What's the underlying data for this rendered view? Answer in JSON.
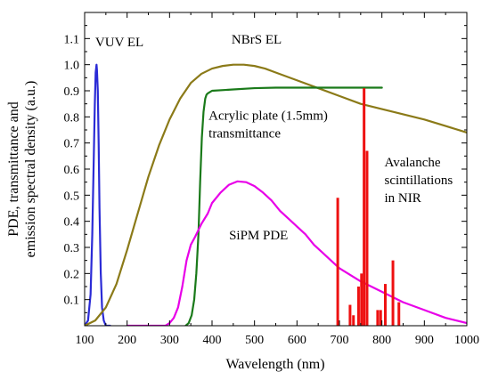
{
  "chart_data": {
    "type": "line",
    "xlabel": "Wavelength (nm)",
    "ylabel_lines": [
      "PDE, transmittance and",
      "emission spectral density (a.u.)"
    ],
    "xlim": [
      100,
      1000
    ],
    "ylim": [
      0,
      1.2
    ],
    "xticks": [
      100,
      200,
      300,
      400,
      500,
      600,
      700,
      800,
      900,
      1000
    ],
    "yticks": [
      0.1,
      0.2,
      0.3,
      0.4,
      0.5,
      0.6,
      0.7,
      0.8,
      0.9,
      1.0,
      1.1
    ],
    "grid": false,
    "series": [
      {
        "key": "vuv",
        "color": "#2b2bd6",
        "x": [
          100,
          108,
          114,
          118,
          121,
          124,
          126,
          128,
          129,
          131,
          133,
          135,
          138,
          141,
          145,
          150,
          160
        ],
        "y": [
          0,
          0.02,
          0.12,
          0.35,
          0.6,
          0.85,
          0.97,
          1.0,
          0.98,
          0.9,
          0.7,
          0.45,
          0.2,
          0.07,
          0.02,
          0,
          0
        ]
      },
      {
        "key": "nbrs",
        "color": "#8b7a18",
        "x": [
          100,
          125,
          150,
          175,
          200,
          225,
          250,
          275,
          300,
          325,
          350,
          375,
          400,
          425,
          450,
          475,
          500,
          525,
          550,
          600,
          650,
          700,
          750,
          800,
          850,
          900,
          950,
          1000
        ],
        "y": [
          0,
          0.02,
          0.07,
          0.16,
          0.29,
          0.43,
          0.57,
          0.69,
          0.79,
          0.87,
          0.93,
          0.965,
          0.985,
          0.995,
          1.0,
          1.0,
          0.995,
          0.985,
          0.97,
          0.94,
          0.91,
          0.88,
          0.85,
          0.83,
          0.81,
          0.79,
          0.765,
          0.74
        ]
      },
      {
        "key": "acrylic",
        "color": "#1a7a1a",
        "x": [
          338,
          345,
          352,
          358,
          363,
          368,
          372,
          376,
          380,
          384,
          387,
          390,
          395,
          400,
          450,
          500,
          550,
          600,
          650,
          700,
          750,
          800
        ],
        "y": [
          0,
          0.01,
          0.04,
          0.1,
          0.2,
          0.35,
          0.55,
          0.72,
          0.82,
          0.87,
          0.885,
          0.89,
          0.895,
          0.9,
          0.905,
          0.91,
          0.912,
          0.912,
          0.912,
          0.912,
          0.912,
          0.912
        ]
      },
      {
        "key": "sipm",
        "color": "#e800e8",
        "x": [
          200,
          290,
          300,
          310,
          320,
          330,
          340,
          350,
          360,
          375,
          390,
          400,
          420,
          440,
          460,
          480,
          500,
          520,
          540,
          560,
          580,
          600,
          620,
          640,
          660,
          680,
          700,
          750,
          800,
          850,
          900,
          950,
          1000
        ],
        "y": [
          0,
          0,
          0.01,
          0.03,
          0.07,
          0.15,
          0.25,
          0.31,
          0.34,
          0.39,
          0.43,
          0.47,
          0.51,
          0.54,
          0.553,
          0.55,
          0.535,
          0.51,
          0.48,
          0.44,
          0.41,
          0.38,
          0.35,
          0.31,
          0.28,
          0.25,
          0.22,
          0.17,
          0.13,
          0.09,
          0.06,
          0.03,
          0.01
        ]
      }
    ],
    "spikes": {
      "key": "nir",
      "color": "#ee1111",
      "lines": [
        {
          "x": 696,
          "y": 0.49
        },
        {
          "x": 725,
          "y": 0.08
        },
        {
          "x": 733,
          "y": 0.04
        },
        {
          "x": 745,
          "y": 0.15
        },
        {
          "x": 752,
          "y": 0.2
        },
        {
          "x": 758,
          "y": 0.91
        },
        {
          "x": 765,
          "y": 0.67
        },
        {
          "x": 790,
          "y": 0.06
        },
        {
          "x": 797,
          "y": 0.06
        },
        {
          "x": 808,
          "y": 0.16
        },
        {
          "x": 826,
          "y": 0.25
        },
        {
          "x": 840,
          "y": 0.09
        }
      ]
    },
    "annotations": [
      {
        "key": "vuv",
        "lines": [
          "VUV EL"
        ],
        "x": 125,
        "y": 1.07,
        "anchor": "start"
      },
      {
        "key": "nbrs",
        "lines": [
          "NBrS EL"
        ],
        "x": 505,
        "y": 1.08,
        "anchor": "middle"
      },
      {
        "key": "acrylic",
        "lines": [
          "Acrylic plate (1.5mm)",
          "transmittance"
        ],
        "x": 392,
        "y": 0.79,
        "anchor": "start"
      },
      {
        "key": "nir",
        "lines": [
          "Avalanche",
          "scintillations",
          "in NIR"
        ],
        "x": 806,
        "y": 0.61,
        "anchor": "start"
      },
      {
        "key": "sipm",
        "lines": [
          "SiPM PDE"
        ],
        "x": 440,
        "y": 0.33,
        "anchor": "start"
      }
    ]
  }
}
